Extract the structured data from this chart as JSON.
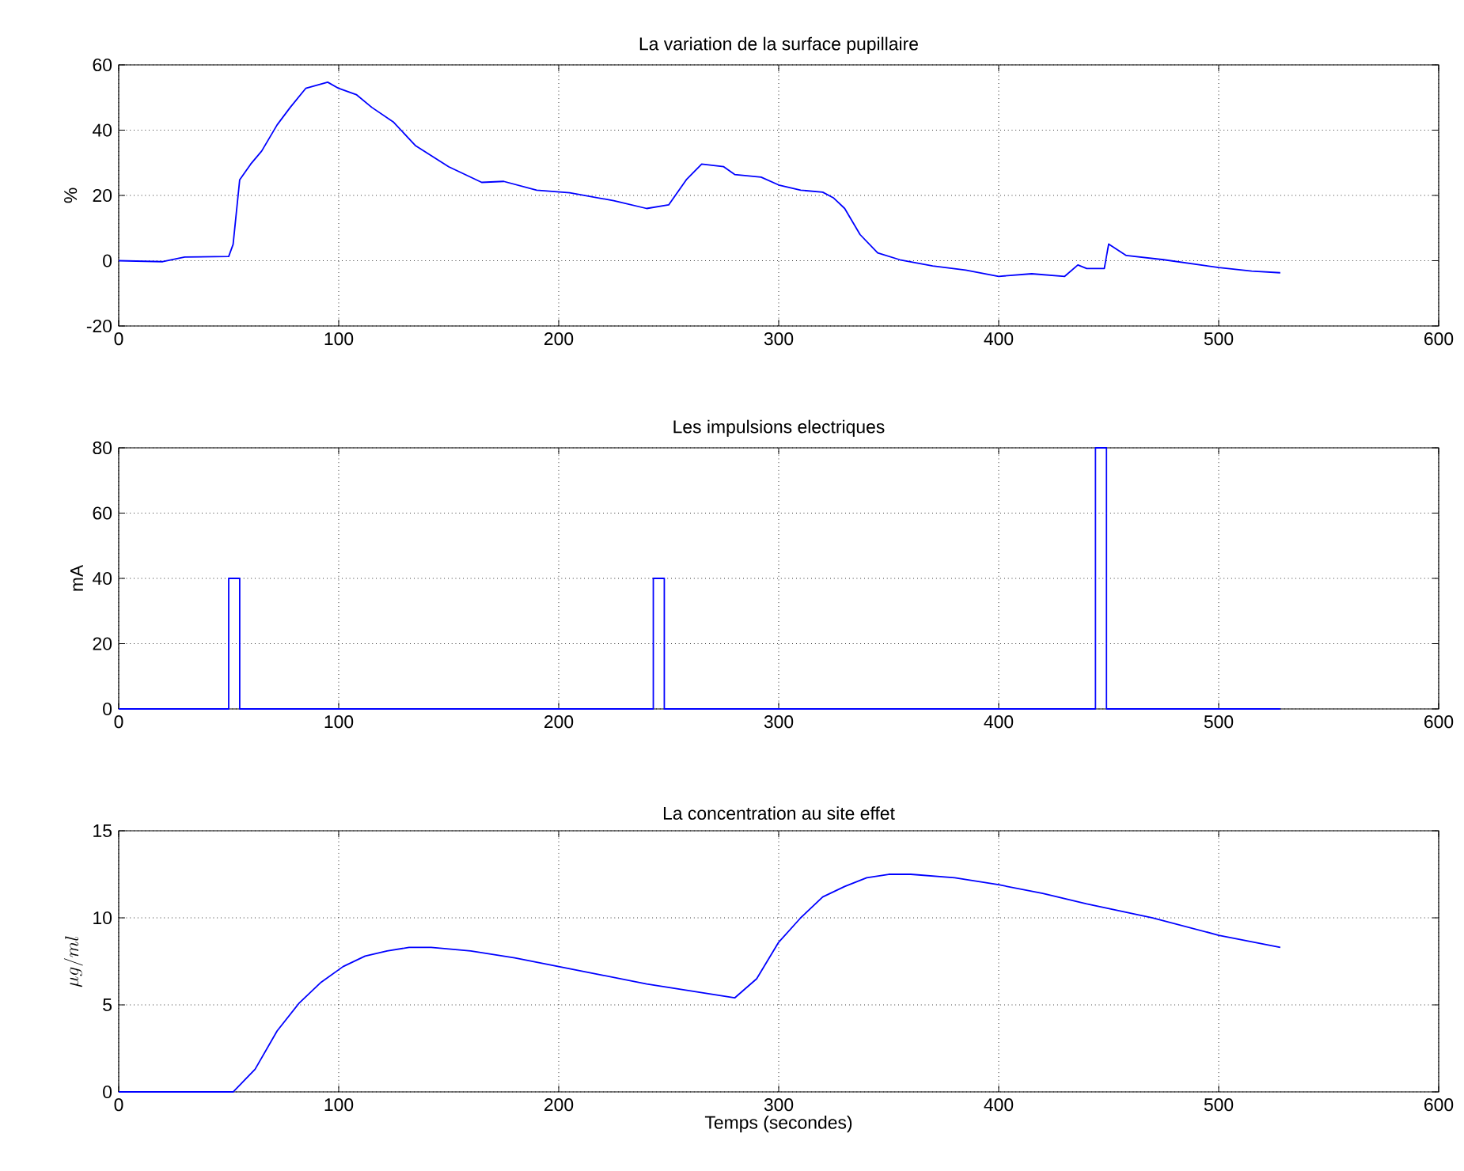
{
  "chart_data": [
    {
      "type": "line",
      "title": "La variation de la surface pupillaire",
      "ylabel": "%",
      "xlim": [
        0,
        600
      ],
      "ylim": [
        -20,
        60
      ],
      "xticks": [
        0,
        100,
        200,
        300,
        400,
        500,
        600
      ],
      "yticks": [
        -20,
        0,
        20,
        40,
        60
      ],
      "grid": true,
      "line_style": "solid",
      "marker": "none",
      "series": [
        {
          "color": "#0000ff",
          "x": [
            0,
            20,
            30,
            50,
            52,
            55,
            60,
            65,
            72,
            78,
            85,
            95,
            100,
            108,
            115,
            125,
            135,
            150,
            165,
            175,
            190,
            205,
            225,
            240,
            250,
            258,
            265,
            275,
            280,
            292,
            300,
            310,
            320,
            325,
            330,
            337,
            345,
            355,
            370,
            385,
            400,
            415,
            430,
            436,
            440,
            448,
            450,
            458,
            475,
            500,
            515,
            528
          ],
          "values": [
            0,
            -0.3,
            1.1,
            1.3,
            5,
            24.8,
            29.6,
            33.6,
            41.6,
            47,
            52.8,
            54.7,
            52.8,
            50.9,
            47,
            42.4,
            35.2,
            28.8,
            24,
            24.3,
            21.6,
            20.8,
            18.4,
            16,
            17.1,
            24.8,
            29.6,
            28.8,
            26.4,
            25.6,
            23.2,
            21.6,
            21,
            19.2,
            16,
            8,
            2.4,
            0.3,
            -1.6,
            -2.9,
            -4.8,
            -4,
            -4.8,
            -1.3,
            -2.4,
            -2.4,
            5.1,
            1.6,
            0.3,
            -2.1,
            -3.2,
            -3.7
          ]
        }
      ]
    },
    {
      "type": "line",
      "title": "Les impulsions electriques",
      "ylabel": "mA",
      "xlim": [
        0,
        600
      ],
      "ylim": [
        0,
        80
      ],
      "xticks": [
        0,
        100,
        200,
        300,
        400,
        500,
        600
      ],
      "yticks": [
        0,
        20,
        40,
        60,
        80
      ],
      "grid": true,
      "line_style": "solid",
      "marker": "none",
      "series": [
        {
          "color": "#0000ff",
          "x": [
            0,
            50,
            50,
            55,
            55,
            243,
            243,
            248,
            248,
            444,
            444,
            449,
            449,
            528
          ],
          "values": [
            0,
            0,
            40,
            40,
            0,
            0,
            40,
            40,
            0,
            0,
            80,
            80,
            0,
            0
          ]
        }
      ]
    },
    {
      "type": "line",
      "title": "La concentration au site effet",
      "xlabel": "Temps (secondes)",
      "ylabel": "\\mu g/ml",
      "xlim": [
        0,
        600
      ],
      "ylim": [
        0,
        15
      ],
      "xticks": [
        0,
        100,
        200,
        300,
        400,
        500,
        600
      ],
      "yticks": [
        0,
        5,
        10,
        15
      ],
      "grid": true,
      "line_style": "solid",
      "marker": "none",
      "series": [
        {
          "color": "#0000ff",
          "x": [
            0,
            52,
            62,
            72,
            82,
            92,
            102,
            112,
            122,
            132,
            142,
            160,
            180,
            200,
            220,
            240,
            260,
            280,
            290,
            300,
            310,
            320,
            330,
            340,
            350,
            360,
            380,
            400,
            420,
            440,
            470,
            500,
            528
          ],
          "values": [
            0,
            0,
            1.3,
            3.5,
            5.1,
            6.3,
            7.2,
            7.8,
            8.1,
            8.3,
            8.3,
            8.1,
            7.7,
            7.2,
            6.7,
            6.2,
            5.8,
            5.4,
            6.5,
            8.6,
            10,
            11.2,
            11.8,
            12.3,
            12.5,
            12.5,
            12.3,
            11.9,
            11.4,
            10.8,
            10,
            9.0,
            8.3
          ]
        }
      ]
    }
  ]
}
